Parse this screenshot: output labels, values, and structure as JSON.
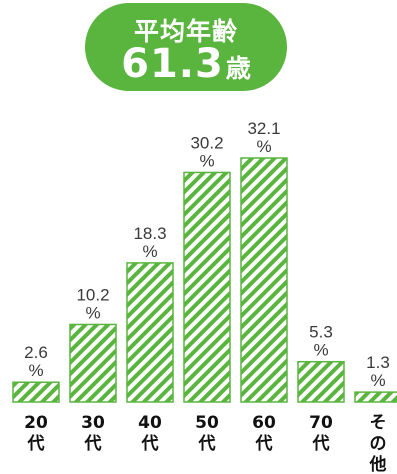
{
  "badge": {
    "label": "平均年齢",
    "value": "61.3",
    "unit": "歳"
  },
  "colors": {
    "badge_bg": "#5ab53e",
    "bar_stripe": "#5ab53e",
    "bar_border": "#5ab53e"
  },
  "chart_data": {
    "type": "bar",
    "title": "",
    "xlabel": "",
    "ylabel": "",
    "ylim": [
      0,
      32.1
    ],
    "grid": false,
    "categories": [
      [
        "20",
        "代"
      ],
      [
        "30",
        "代"
      ],
      [
        "40",
        "代"
      ],
      [
        "50",
        "代"
      ],
      [
        "60",
        "代"
      ],
      [
        "70",
        "代"
      ],
      [
        "そ",
        "の",
        "他"
      ]
    ],
    "values": [
      2.6,
      10.2,
      18.3,
      30.2,
      32.1,
      5.3,
      1.3
    ],
    "value_labels": [
      "2.6",
      "10.2",
      "18.3",
      "30.2",
      "32.1",
      "5.3",
      "1.3"
    ],
    "value_unit": "%"
  }
}
